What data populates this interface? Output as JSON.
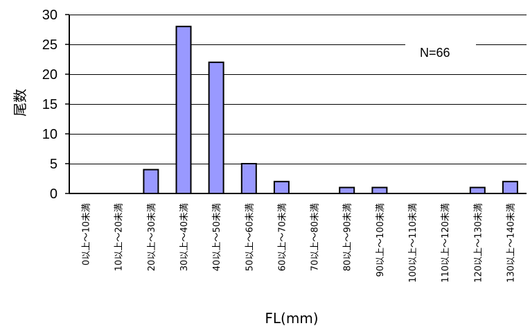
{
  "chart_data": {
    "type": "bar",
    "categories": [
      "0以上～10未満",
      "10以上～20未満",
      "20以上～30未満",
      "30以上～40未満",
      "40以上～50未満",
      "50以上～60未満",
      "60以上～70未満",
      "70以上～80未満",
      "80以上～90未満",
      "90以上～100未満",
      "100以上～110未満",
      "110以上～120未満",
      "120以上～130未満",
      "130以上～140未満"
    ],
    "values": [
      0,
      0,
      4,
      28,
      22,
      5,
      2,
      0,
      1,
      1,
      0,
      0,
      1,
      2
    ],
    "xlabel": "FL(mm)",
    "ylabel": "尾数",
    "ylim": [
      0,
      30
    ],
    "yticks": [
      0,
      5,
      10,
      15,
      20,
      25,
      30
    ],
    "annotation": "N=66",
    "grid": true,
    "colors": {
      "bar": "#9999ff",
      "bar_stroke": "#000000",
      "grid": "#000000"
    }
  }
}
